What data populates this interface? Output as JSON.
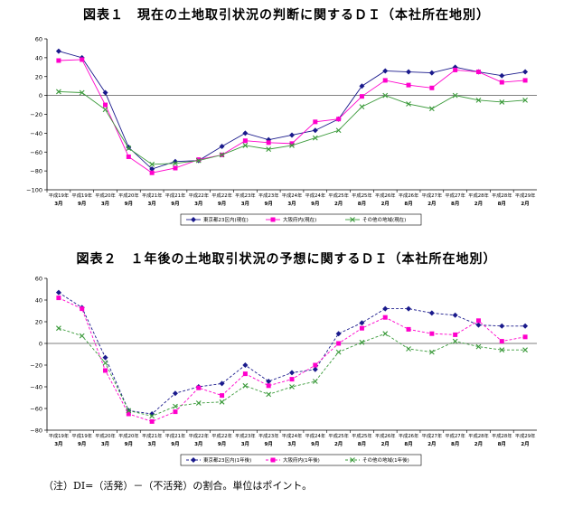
{
  "titles": {
    "chart1": "図表１　現在の土地取引状況の判断に関するＤＩ（本社所在地別）",
    "chart2": "図表２　１年後の土地取引状況の予想に関するＤＩ（本社所在地別）"
  },
  "note": "（注）DI=（活発）－（不活発）の割合。単位はポイント。",
  "colors": {
    "tokyo": "#1a1a8c",
    "osaka": "#ff00cc",
    "other": "#3a9a3a"
  },
  "chart_data": [
    {
      "type": "line",
      "title": "図表１　現在の土地取引状況の判断に関するＤＩ（本社所在地別）",
      "ylim": [
        -100,
        60
      ],
      "yticks": [
        "60",
        "40",
        "20",
        "0",
        "−20",
        "−40",
        "−60",
        "−80",
        "−100"
      ],
      "ytick_values": [
        60,
        40,
        20,
        0,
        -20,
        -40,
        -60,
        -80,
        -100
      ],
      "categories_line1": [
        "平成19年",
        "平成19年",
        "平成20年",
        "平成20年",
        "平成21年",
        "平成21年",
        "平成22年",
        "平成22年",
        "平成23年",
        "平成23年",
        "平成24年",
        "平成24年",
        "平成25年",
        "平成25年",
        "平成26年",
        "平成26年",
        "平成27年",
        "平成27年",
        "平成28年",
        "平成28年",
        "平成29年"
      ],
      "categories_line2": [
        "3月",
        "9月",
        "3月",
        "9月",
        "3月",
        "9月",
        "3月",
        "9月",
        "3月",
        "9月",
        "3月",
        "9月",
        "2月",
        "8月",
        "2月",
        "8月",
        "2月",
        "8月",
        "2月",
        "8月",
        "2月"
      ],
      "series": [
        {
          "name": "東京都23区内(現在)",
          "key": "tokyo",
          "dashed": false,
          "values": [
            47,
            40,
            3,
            -55,
            -78,
            -70,
            -69,
            -54,
            -40,
            -47,
            -42,
            -37,
            -25,
            10,
            26,
            25,
            24,
            30,
            25,
            21,
            25
          ]
        },
        {
          "name": "大阪府内(現在)",
          "key": "osaka",
          "dashed": false,
          "values": [
            37,
            38,
            -10,
            -65,
            -82,
            -77,
            -68,
            -63,
            -48,
            -50,
            -51,
            -28,
            -25,
            -1,
            16,
            11,
            8,
            27,
            25,
            14,
            16
          ]
        },
        {
          "name": "その他の地域(現在)",
          "key": "other",
          "dashed": false,
          "values": [
            4,
            3,
            -15,
            -56,
            -73,
            -72,
            -69,
            -63,
            -53,
            -57,
            -53,
            -45,
            -37,
            -12,
            0,
            -9,
            -14,
            0,
            -5,
            -7,
            -5
          ]
        }
      ]
    },
    {
      "type": "line",
      "title": "図表２　１年後の土地取引状況の予想に関するＤＩ（本社所在地別）",
      "ylim": [
        -80,
        60
      ],
      "yticks": [
        "60",
        "40",
        "20",
        "0",
        "−20",
        "−40",
        "−60",
        "−80"
      ],
      "ytick_values": [
        60,
        40,
        20,
        0,
        -20,
        -40,
        -60,
        -80
      ],
      "categories_line1": [
        "平成19年",
        "平成19年",
        "平成20年",
        "平成20年",
        "平成21年",
        "平成21年",
        "平成22年",
        "平成22年",
        "平成23年",
        "平成23年",
        "平成24年",
        "平成24年",
        "平成25年",
        "平成25年",
        "平成26年",
        "平成26年",
        "平成27年",
        "平成27年",
        "平成28年",
        "平成28年",
        "平成29年"
      ],
      "categories_line2": [
        "3月",
        "9月",
        "3月",
        "9月",
        "3月",
        "9月",
        "3月",
        "9月",
        "3月",
        "9月",
        "3月",
        "9月",
        "2月",
        "8月",
        "2月",
        "8月",
        "2月",
        "8月",
        "2月",
        "8月",
        "2月"
      ],
      "series": [
        {
          "name": "東京都23区内(1年後)",
          "key": "tokyo",
          "dashed": true,
          "values": [
            47,
            33,
            -13,
            -62,
            -65,
            -46,
            -40,
            -37,
            -20,
            -35,
            -27,
            -24,
            9,
            19,
            32,
            32,
            28,
            26,
            17,
            16,
            16
          ]
        },
        {
          "name": "大阪府内(1年後)",
          "key": "osaka",
          "dashed": true,
          "values": [
            42,
            32,
            -25,
            -65,
            -72,
            -63,
            -41,
            -48,
            -28,
            -39,
            -33,
            -20,
            0,
            14,
            24,
            13,
            9,
            8,
            21,
            2,
            6
          ]
        },
        {
          "name": "その他の地域(1年後)",
          "key": "other",
          "dashed": true,
          "values": [
            14,
            7,
            -18,
            -62,
            -67,
            -58,
            -55,
            -54,
            -39,
            -47,
            -40,
            -35,
            -8,
            1,
            9,
            -5,
            -8,
            2,
            -3,
            -6,
            -6
          ]
        }
      ]
    }
  ]
}
